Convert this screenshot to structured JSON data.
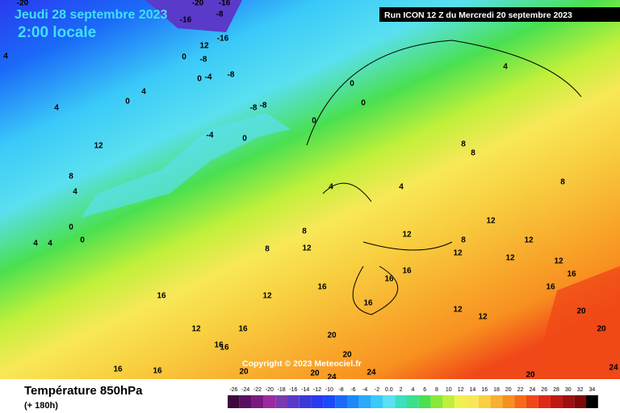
{
  "header": {
    "date": "Jeudi 28 septembre 2023",
    "time": "2:00 locale",
    "run": "Run ICON 12 Z du Mercredi 20 septembre 2023",
    "copyright": "Copyright © 2023 Meteociel.fr"
  },
  "footer": {
    "title": "Température 850hPa",
    "subtitle": "(+ 180h)"
  },
  "contour_labels": [
    "-20",
    "-16",
    "-20",
    "-16",
    "-8",
    "12",
    "-16",
    "0",
    "-8",
    "0",
    "-4",
    "-8",
    "4",
    "0",
    "4",
    "-8",
    "-8",
    "0",
    "-4",
    "0",
    "0",
    "0",
    "4",
    "4",
    "4",
    "4",
    "8",
    "12",
    "8",
    "8",
    "4",
    "4",
    "0",
    "0",
    "4",
    "8",
    "8",
    "8",
    "8",
    "12",
    "12",
    "12",
    "12",
    "12",
    "12",
    "12",
    "16",
    "16",
    "16",
    "16",
    "16",
    "16",
    "12",
    "12",
    "12",
    "16",
    "16",
    "12",
    "16",
    "20",
    "20",
    "16",
    "20",
    "16",
    "16",
    "20",
    "24",
    "20",
    "24",
    "20",
    "24",
    "20"
  ],
  "legend": {
    "ticks": [
      -26,
      -24,
      -22,
      -20,
      -18,
      -16,
      -14,
      -12,
      -10,
      -8,
      -6,
      -4,
      -2,
      {
        "value": 0,
        "label": "0.0"
      },
      2,
      4,
      6,
      8,
      10,
      12,
      14,
      16,
      18,
      20,
      22,
      24,
      26,
      28,
      30,
      32,
      34
    ],
    "colors": [
      "#3d0a3d",
      "#5a1060",
      "#7a1a80",
      "#9b2aa0",
      "#7a3ab0",
      "#5a3ac8",
      "#3a3ad8",
      "#2a3af0",
      "#1a4af8",
      "#1a6af8",
      "#1a8af8",
      "#2aaaf8",
      "#3acaf8",
      "#5ae0f0",
      "#3ae0c0",
      "#3ae08a",
      "#4ae050",
      "#8ae83a",
      "#c0f03a",
      "#f0f050",
      "#f8e858",
      "#f8d040",
      "#f8b030",
      "#f89020",
      "#f86a18",
      "#f04818",
      "#e02818",
      "#c01810",
      "#a01010",
      "#800808",
      "#000000"
    ]
  }
}
